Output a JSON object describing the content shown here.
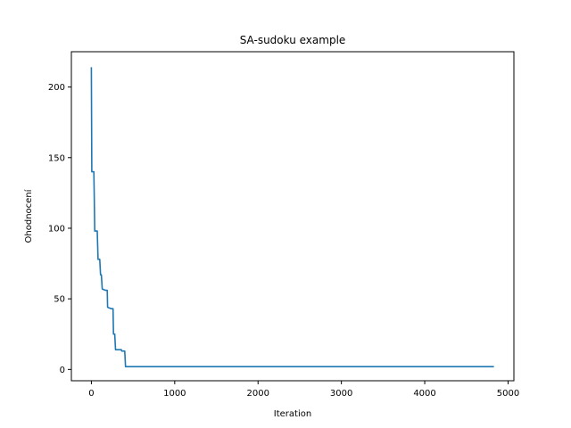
{
  "chart_data": {
    "type": "line",
    "title": "SA-sudoku example",
    "xlabel": "Iteration",
    "ylabel": "Ohodnocení",
    "xlim": [
      -240,
      5070
    ],
    "ylim": [
      -8,
      225
    ],
    "x_ticks": [
      0,
      1000,
      2000,
      3000,
      4000,
      5000
    ],
    "y_ticks": [
      0,
      50,
      100,
      150,
      200
    ],
    "grid": false,
    "series": [
      {
        "color": "#1f77b4",
        "points": [
          [
            0,
            214
          ],
          [
            5,
            140
          ],
          [
            30,
            140
          ],
          [
            35,
            120
          ],
          [
            40,
            98
          ],
          [
            70,
            98
          ],
          [
            80,
            78
          ],
          [
            100,
            78
          ],
          [
            110,
            67
          ],
          [
            120,
            67
          ],
          [
            130,
            57
          ],
          [
            170,
            56
          ],
          [
            190,
            56
          ],
          [
            195,
            44
          ],
          [
            240,
            43
          ],
          [
            260,
            43
          ],
          [
            265,
            25
          ],
          [
            280,
            25
          ],
          [
            290,
            14
          ],
          [
            360,
            14
          ],
          [
            365,
            13
          ],
          [
            400,
            13
          ],
          [
            410,
            2
          ],
          [
            4830,
            2
          ]
        ]
      }
    ]
  }
}
